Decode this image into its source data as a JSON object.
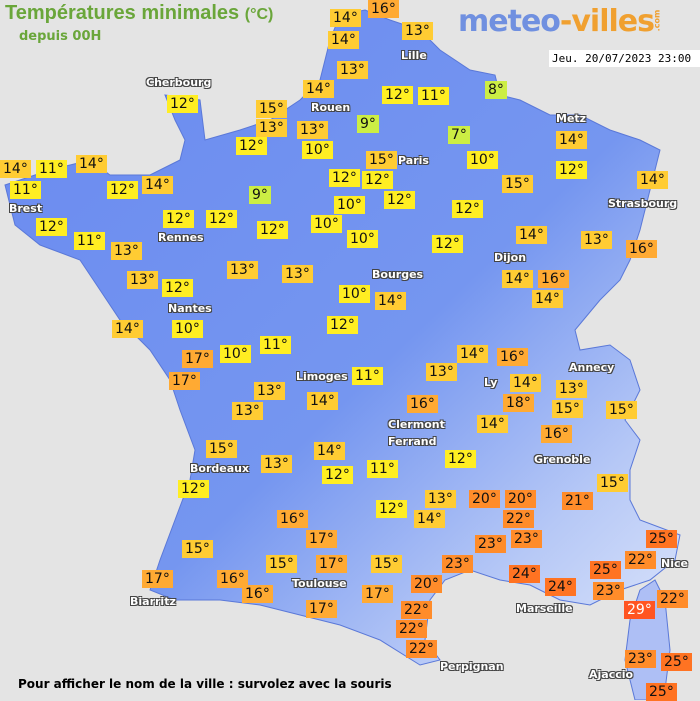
{
  "header": {
    "title": "Températures minimales",
    "unit": "(°C)",
    "subtitle": "depuis 00H",
    "date": "Jeu. 20/07/2023 23:00"
  },
  "logo": {
    "part1": "meteo",
    "part2": "-villes",
    "part3": ".com"
  },
  "footer": "Pour afficher le nom de la ville : survolez avec la souris",
  "colors": {
    "background": "#e4e4e4",
    "land": "#6f8ff0",
    "title": "#6aa63a",
    "cold": "#ccee44",
    "cool": "#ffee22",
    "mild": "#ffcc33",
    "warm": "#ffaa33",
    "hot": "#ff8c2a",
    "very_hot": "#ff5522"
  },
  "cities": [
    "Cherbourg",
    "Rouen",
    "Lille",
    "Paris",
    "Metz",
    "Strasbourg",
    "Brest",
    "Rennes",
    "Nantes",
    "Bourges",
    "Dijon",
    "Limoges",
    "Clermont",
    "Ferrand",
    "Ly",
    "Annecy",
    "Grenoble",
    "Bordeaux",
    "Toulouse",
    "Biarritz",
    "Perpignan",
    "Marseille",
    "Nice",
    "Ajaccio"
  ],
  "temperatures": [
    14,
    16,
    14,
    13,
    13,
    12,
    14,
    15,
    13,
    13,
    12,
    10,
    12,
    11,
    9,
    8,
    7,
    10,
    15,
    12,
    12,
    12,
    10,
    12,
    15,
    14,
    12,
    14,
    13,
    16,
    14,
    12,
    10,
    10,
    12,
    9,
    12,
    12,
    14,
    12,
    14,
    14,
    11,
    11,
    12,
    11,
    13,
    13,
    12,
    13,
    13,
    10,
    14,
    12,
    16,
    14,
    14,
    14,
    10,
    11,
    10,
    17,
    17,
    13,
    13,
    14,
    11,
    14,
    16,
    13,
    14,
    18,
    13,
    15,
    15,
    16,
    14,
    16,
    12,
    14,
    12,
    11,
    13,
    15,
    12,
    12,
    13,
    14,
    20,
    20,
    22,
    23,
    23,
    21,
    15,
    25,
    22,
    25,
    24,
    24,
    23,
    29,
    22,
    16,
    17,
    15,
    17,
    16,
    15,
    17,
    15,
    16,
    17,
    17,
    23,
    20,
    22,
    22,
    22,
    23,
    25,
    25
  ]
}
